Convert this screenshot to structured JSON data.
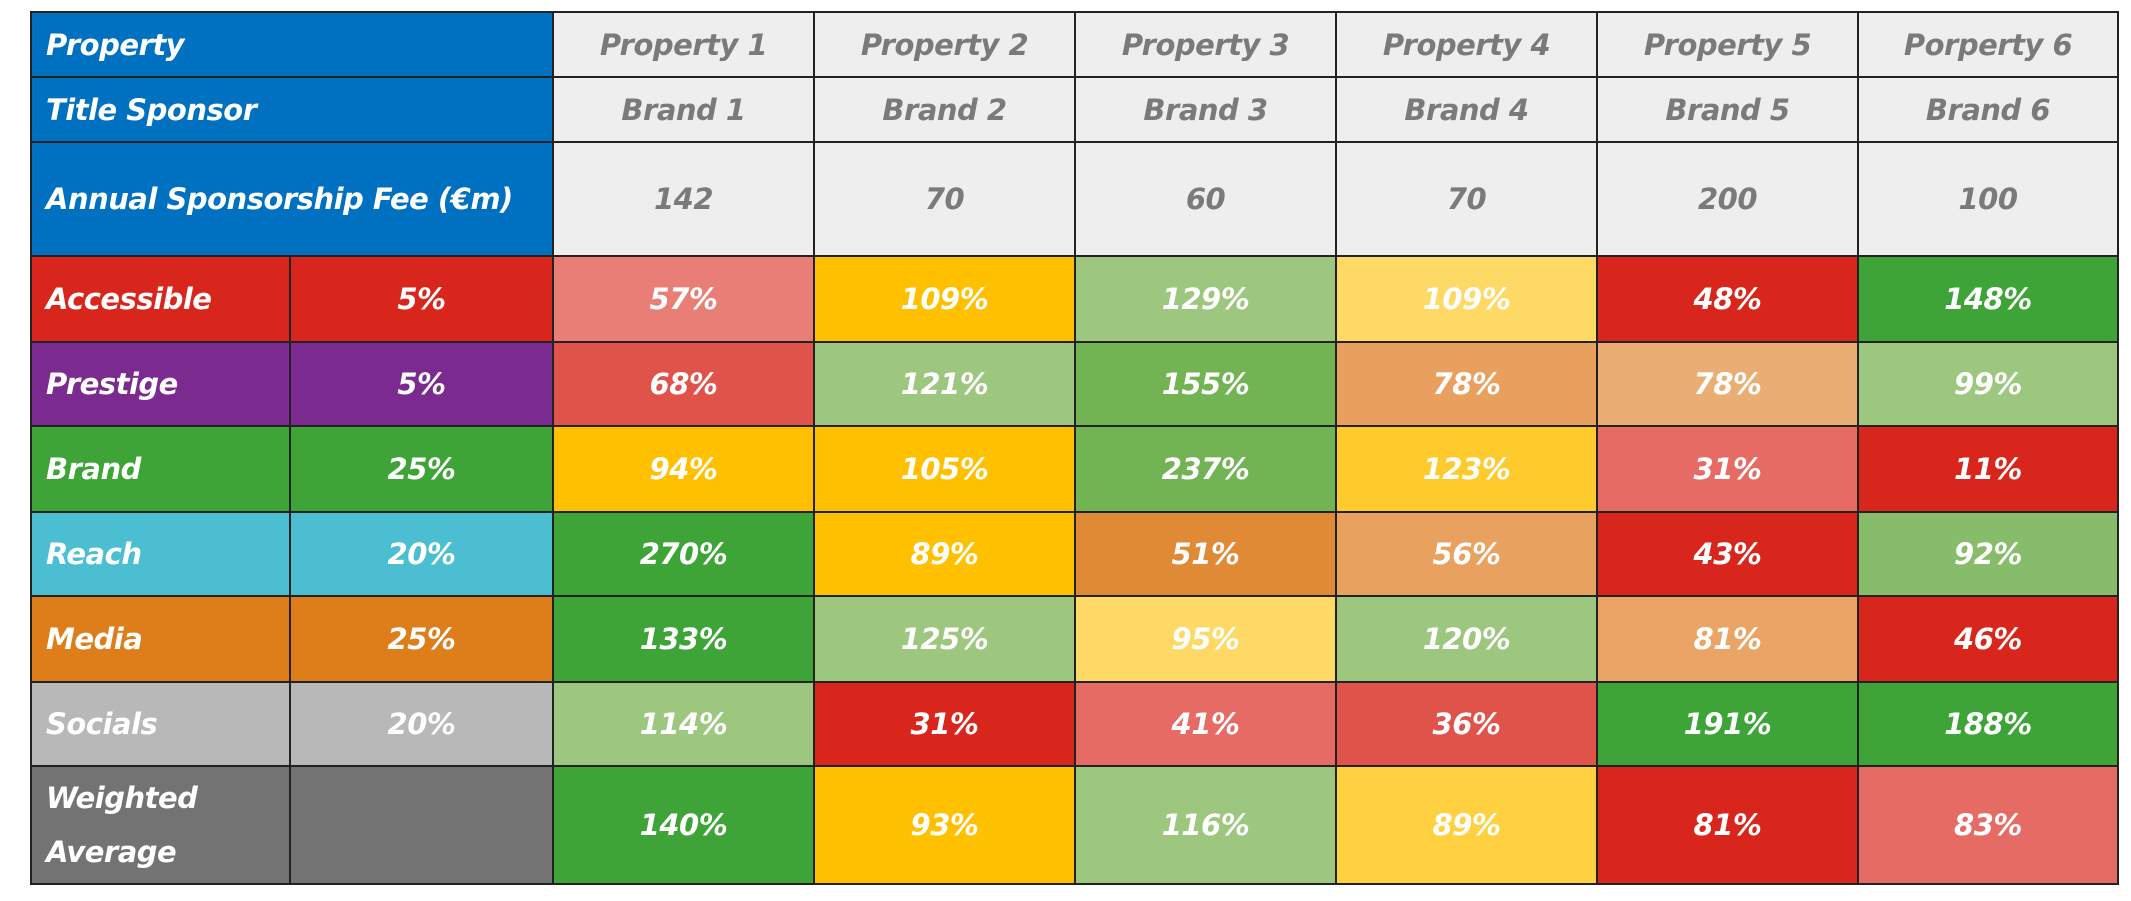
{
  "table": {
    "header": {
      "property_label": "Property",
      "properties": [
        "Property 1",
        "Property 2",
        "Property 3",
        "Property 4",
        "Property 5",
        "Porperty 6"
      ],
      "sponsor_label": "Title Sponsor",
      "sponsors": [
        "Brand 1",
        "Brand 2",
        "Brand 3",
        "Brand 4",
        "Brand 5",
        "Brand 6"
      ],
      "fee_label": "Annual Sponsorship Fee (€m)",
      "fees": [
        "142",
        "70",
        "60",
        "70",
        "200",
        "100"
      ]
    },
    "rows": [
      {
        "label": "Accessible",
        "weight": "5%",
        "label_color": "#d9261c",
        "cells": [
          "57%",
          "109%",
          "129%",
          "109%",
          "48%",
          "148%"
        ],
        "colors": [
          "#e97e76",
          "#ffc000",
          "#9dc77f",
          "#ffd966",
          "#d9261c",
          "#3ea437"
        ]
      },
      {
        "label": "Prestige",
        "weight": "5%",
        "label_color": "#7b2a8f",
        "cells": [
          "68%",
          "121%",
          "155%",
          "78%",
          "78%",
          "99%"
        ],
        "colors": [
          "#e0534a",
          "#9dc77f",
          "#72b354",
          "#e9a05f",
          "#eaae75",
          "#9dc77f"
        ]
      },
      {
        "label": "Brand",
        "weight": "25%",
        "label_color": "#3ea437",
        "cells": [
          "94%",
          "105%",
          "237%",
          "123%",
          "31%",
          "11%"
        ],
        "colors": [
          "#ffc000",
          "#ffc000",
          "#72b354",
          "#ffca2c",
          "#e66b64",
          "#d9261c"
        ]
      },
      {
        "label": "Reach",
        "weight": "20%",
        "label_color": "#4bbfd1",
        "cells": [
          "270%",
          "89%",
          "51%",
          "56%",
          "43%",
          "92%"
        ],
        "colors": [
          "#3ea437",
          "#ffc000",
          "#e08a35",
          "#e8a15f",
          "#d9261c",
          "#87bd6a"
        ]
      },
      {
        "label": "Media",
        "weight": "25%",
        "label_color": "#dd7e1b",
        "cells": [
          "133%",
          "125%",
          "95%",
          "120%",
          "81%",
          "46%"
        ],
        "colors": [
          "#3ea437",
          "#9dc77f",
          "#ffd966",
          "#9dc77f",
          "#eaa466",
          "#d9261c"
        ]
      },
      {
        "label": "Socials",
        "weight": "20%",
        "label_color": "#b8b8b8",
        "cells": [
          "114%",
          "31%",
          "41%",
          "36%",
          "191%",
          "188%"
        ],
        "colors": [
          "#9dc77f",
          "#d9261c",
          "#e66b64",
          "#e0534a",
          "#3ea437",
          "#3ea437"
        ]
      },
      {
        "label": "Weighted Average",
        "label_color": "#737373",
        "cells": [
          "140%",
          "93%",
          "116%",
          "89%",
          "81%",
          "83%"
        ],
        "colors": [
          "#3ea437",
          "#ffc000",
          "#9dc77f",
          "#ffd040",
          "#d9261c",
          "#e66b64"
        ]
      }
    ]
  }
}
